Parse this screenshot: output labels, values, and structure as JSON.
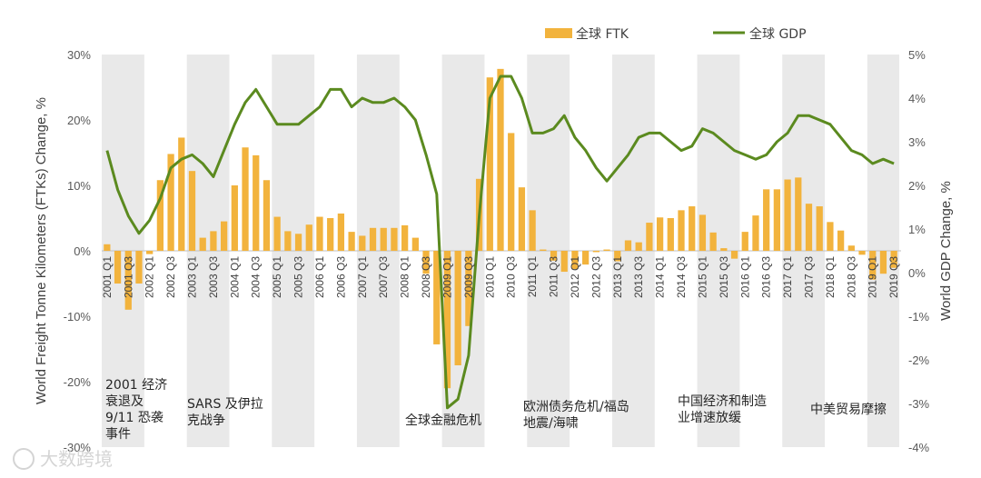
{
  "chart_data": {
    "type": "bar+line",
    "ylabel_left": "World Freight Tonne Kilometers (FTKs) Change, %",
    "ylabel_right": "World GDP Change, %",
    "y_left_ticks": [
      "30%",
      "20%",
      "10%",
      "0%",
      "-10%",
      "-20%",
      "-30%"
    ],
    "y_right_ticks": [
      "5%",
      "4%",
      "3%",
      "2%",
      "1%",
      "0%",
      "-1%",
      "-2%",
      "-3%",
      "-4%"
    ],
    "ylim_left": [
      -30,
      30
    ],
    "ylim_right": [
      -4,
      5
    ],
    "x_tick_labels": [
      "2001 Q1",
      "2001 Q3",
      "2002 Q1",
      "2002 Q3",
      "2003 Q1",
      "2003 Q3",
      "2004 Q1",
      "2004 Q3",
      "2005 Q1",
      "2005 Q3",
      "2006 Q1",
      "2006 Q3",
      "2007 Q1",
      "2007 Q3",
      "2008 Q1",
      "2008 Q3",
      "2009 Q1",
      "2009 Q3",
      "2010 Q1",
      "2010 Q3",
      "2011 Q1",
      "2011 Q3",
      "2012 Q1",
      "2012 Q3",
      "2013 Q1",
      "2013 Q3",
      "2014 Q1",
      "2014 Q3",
      "2015 Q1",
      "2015 Q3",
      "2016 Q1",
      "2016 Q3",
      "2017 Q1",
      "2017 Q3",
      "2018 Q1",
      "2018 Q3",
      "2019 Q1",
      "2019 Q3"
    ],
    "legend": {
      "bar": "全球 FTK",
      "line": "全球 GDP"
    },
    "colors": {
      "bar": "#f2b33d",
      "line": "#5b8a1f",
      "shade": "#e9e9e9"
    },
    "series": [
      {
        "name": "全球 FTK",
        "axis": "left",
        "kind": "bar",
        "values": [
          1.0,
          -5.0,
          -9.0,
          -5.0,
          -0.5,
          10.8,
          14.8,
          17.3,
          12.2,
          2.0,
          3.0,
          4.5,
          10.0,
          15.8,
          14.6,
          10.8,
          5.2,
          3.0,
          2.6,
          4.0,
          5.2,
          5.0,
          5.7,
          2.9,
          2.3,
          3.5,
          3.5,
          3.5,
          3.9,
          2.0,
          -3.5,
          -14.3,
          -21.0,
          -17.5,
          -11.5,
          11.0,
          26.5,
          27.8,
          18.0,
          9.7,
          6.2,
          0.2,
          -1.5,
          -3.2,
          -2.8,
          -2.1,
          -0.2,
          0.2,
          -1.6,
          1.6,
          1.3,
          4.3,
          5.1,
          5.0,
          6.2,
          6.8,
          5.5,
          2.8,
          0.4,
          -1.2,
          2.9,
          5.4,
          9.4,
          9.4,
          10.9,
          11.2,
          7.2,
          6.8,
          4.4,
          3.1,
          0.8,
          -0.6,
          -4.4,
          -3.5,
          -2.6
        ]
      },
      {
        "name": "全球 GDP",
        "axis": "right",
        "kind": "line",
        "values": [
          2.8,
          1.9,
          1.3,
          0.9,
          1.2,
          1.7,
          2.4,
          2.6,
          2.7,
          2.5,
          2.2,
          2.8,
          3.4,
          3.9,
          4.2,
          3.8,
          3.4,
          3.4,
          3.4,
          3.6,
          3.8,
          4.2,
          4.2,
          3.8,
          4.0,
          3.9,
          3.9,
          4.0,
          3.8,
          3.5,
          2.7,
          1.8,
          -3.1,
          -2.9,
          -1.9,
          1.3,
          4.0,
          4.5,
          4.5,
          4.0,
          3.2,
          3.2,
          3.3,
          3.6,
          3.1,
          2.8,
          2.4,
          2.1,
          2.4,
          2.7,
          3.1,
          3.2,
          3.2,
          3.0,
          2.8,
          2.9,
          3.3,
          3.2,
          3.0,
          2.8,
          2.7,
          2.6,
          2.7,
          3.0,
          3.2,
          3.6,
          3.6,
          3.5,
          3.4,
          3.1,
          2.8,
          2.7,
          2.5,
          2.6,
          2.5
        ]
      }
    ],
    "annotations": [
      {
        "lines": [
          "2001 经济",
          "衰退及",
          "9/11 恐袭",
          "事件"
        ]
      },
      {
        "lines": [
          "SARS 及伊拉",
          "克战争"
        ]
      },
      {
        "lines": [
          "全球金融危机"
        ]
      },
      {
        "lines": [
          "欧洲债务危机/福岛",
          "地震/海啸"
        ]
      },
      {
        "lines": [
          "中国经济和制造",
          "业增速放缓"
        ]
      },
      {
        "lines": [
          "中美贸易摩擦"
        ]
      }
    ],
    "grid": false,
    "legend_position": "top-right"
  },
  "watermark": "大数跨境"
}
